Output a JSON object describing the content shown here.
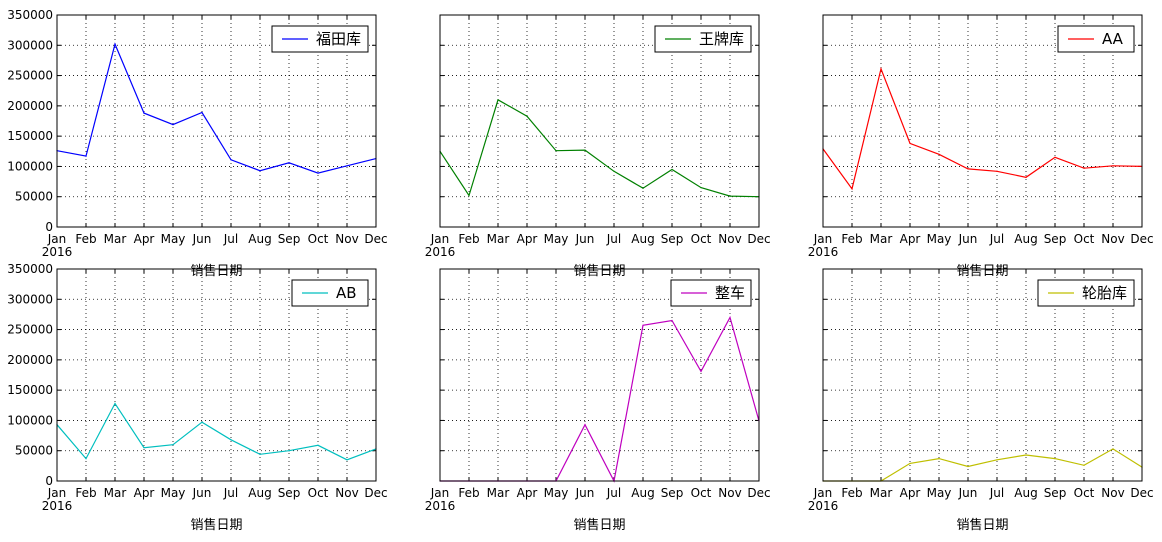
{
  "chart_data": [
    {
      "type": "line",
      "x": [
        "Jan",
        "Feb",
        "Mar",
        "Apr",
        "May",
        "Jun",
        "Jul",
        "Aug",
        "Sep",
        "Oct",
        "Nov",
        "Dec"
      ],
      "x_year_label": "2016",
      "xlabel": "销售日期",
      "ylim": [
        0,
        350000
      ],
      "yticks": [
        "0",
        "50000",
        "100000",
        "150000",
        "200000",
        "250000",
        "300000",
        "350000"
      ],
      "grid": true,
      "legend_position": "top-right",
      "series": [
        {
          "name": "福田库",
          "color": "#0000ff",
          "values": [
            126000,
            117000,
            302000,
            188000,
            169000,
            189000,
            111000,
            93000,
            106000,
            89000,
            101000,
            113000
          ]
        }
      ]
    },
    {
      "type": "line",
      "x": [
        "Jan",
        "Feb",
        "Mar",
        "Apr",
        "May",
        "Jun",
        "Jul",
        "Aug",
        "Sep",
        "Oct",
        "Nov",
        "Dec"
      ],
      "x_year_label": "2016",
      "xlabel": "销售日期",
      "ylim": [
        0,
        350000
      ],
      "grid": true,
      "legend_position": "top-right",
      "series": [
        {
          "name": "王牌库",
          "color": "#008000",
          "values": [
            125000,
            52000,
            210000,
            183000,
            126000,
            127000,
            92000,
            64000,
            95000,
            65000,
            51000,
            50000
          ]
        }
      ]
    },
    {
      "type": "line",
      "x": [
        "Jan",
        "Feb",
        "Mar",
        "Apr",
        "May",
        "Jun",
        "Jul",
        "Aug",
        "Sep",
        "Oct",
        "Nov",
        "Dec"
      ],
      "x_year_label": "2016",
      "xlabel": "销售日期",
      "ylim": [
        0,
        350000
      ],
      "grid": true,
      "legend_position": "top-right",
      "series": [
        {
          "name": "AA",
          "color": "#ff0000",
          "values": [
            129000,
            63000,
            261000,
            138000,
            120000,
            96000,
            92000,
            82000,
            115000,
            97000,
            101000,
            100000
          ]
        }
      ]
    },
    {
      "type": "line",
      "x": [
        "Jan",
        "Feb",
        "Mar",
        "Apr",
        "May",
        "Jun",
        "Jul",
        "Aug",
        "Sep",
        "Oct",
        "Nov",
        "Dec"
      ],
      "x_year_label": "2016",
      "xlabel": "销售日期",
      "ylim": [
        0,
        350000
      ],
      "yticks": [
        "0",
        "50000",
        "100000",
        "150000",
        "200000",
        "250000",
        "300000",
        "350000"
      ],
      "grid": true,
      "legend_position": "top-right",
      "series": [
        {
          "name": "AB",
          "color": "#00bfbf",
          "values": [
            93000,
            37000,
            128000,
            55000,
            60000,
            97000,
            68000,
            44000,
            50000,
            59000,
            35000,
            53000
          ]
        }
      ]
    },
    {
      "type": "line",
      "x": [
        "Jan",
        "Feb",
        "Mar",
        "Apr",
        "May",
        "Jun",
        "Jul",
        "Aug",
        "Sep",
        "Oct",
        "Nov",
        "Dec"
      ],
      "x_year_label": "2016",
      "xlabel": "销售日期",
      "ylim": [
        0,
        350000
      ],
      "grid": true,
      "legend_position": "top-right",
      "series": [
        {
          "name": "整车",
          "color": "#bf00bf",
          "values": [
            0,
            0,
            0,
            0,
            0,
            93000,
            0,
            257000,
            265000,
            181000,
            270000,
            99000
          ]
        }
      ]
    },
    {
      "type": "line",
      "x": [
        "Jan",
        "Feb",
        "Mar",
        "Apr",
        "May",
        "Jun",
        "Jul",
        "Aug",
        "Sep",
        "Oct",
        "Nov",
        "Dec"
      ],
      "x_year_label": "2016",
      "xlabel": "销售日期",
      "ylim": [
        0,
        350000
      ],
      "grid": true,
      "legend_position": "top-right",
      "series": [
        {
          "name": "轮胎库",
          "color": "#bfbf00",
          "values": [
            0,
            0,
            0,
            29000,
            37000,
            24000,
            35000,
            43000,
            37000,
            26000,
            53000,
            23000
          ]
        }
      ]
    }
  ]
}
